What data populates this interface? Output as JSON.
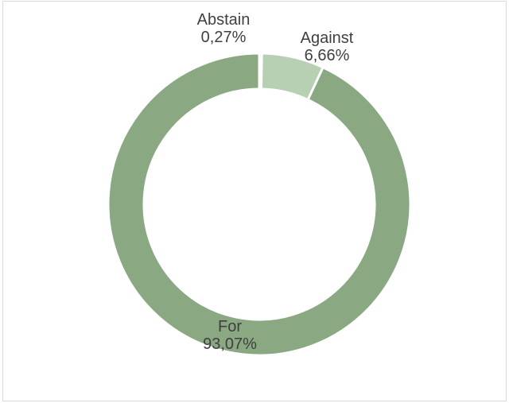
{
  "chart_data": {
    "type": "pie",
    "variant": "donut",
    "categories": [
      "Abstain",
      "Against",
      "For"
    ],
    "values": [
      0.27,
      6.66,
      93.07
    ],
    "value_labels": [
      "0,27%",
      "6,66%",
      "93,07%"
    ],
    "colors": [
      "#8aa882",
      "#b7cfb2",
      "#8aa882"
    ],
    "title": "",
    "legend": "none"
  }
}
